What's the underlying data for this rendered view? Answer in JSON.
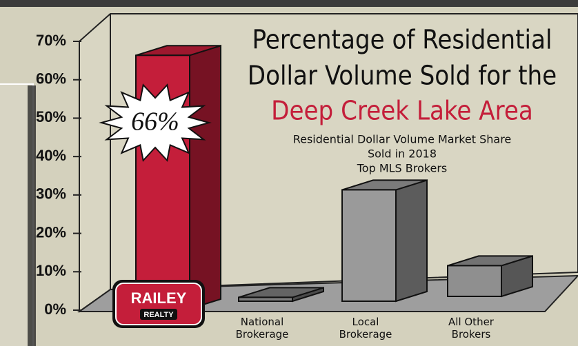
{
  "chart_data": {
    "type": "bar3d",
    "title_lines": [
      "Percentage of Residential",
      "Dollar Volume Sold for the"
    ],
    "title_highlight": "Deep Creek Lake Area",
    "subtitle_lines": [
      "Residential Dollar Volume Market Share",
      "Sold in 2018",
      "Top MLS Brokers"
    ],
    "categories": [
      null,
      "National Brokerage",
      "Local Brokerage",
      "All Other Brokers"
    ],
    "values": [
      66,
      1,
      29,
      8
    ],
    "value_labels": [
      "66%",
      null,
      null,
      null
    ],
    "colors": [
      "#c41e3a",
      "#7d7d7d",
      "#9a9a9a",
      "#8f8f8f"
    ],
    "logo": {
      "line1": "RAILEY",
      "line2": "REALTY"
    },
    "ylim": [
      0,
      70
    ],
    "yticks": [
      {
        "value": 0,
        "label": "0%"
      },
      {
        "value": 10,
        "label": "10%"
      },
      {
        "value": 20,
        "label": "20%"
      },
      {
        "value": 30,
        "label": "30%"
      },
      {
        "value": 40,
        "label": "40%"
      },
      {
        "value": 50,
        "label": "50%"
      },
      {
        "value": 60,
        "label": "60%"
      },
      {
        "value": 70,
        "label": "70%"
      }
    ]
  }
}
